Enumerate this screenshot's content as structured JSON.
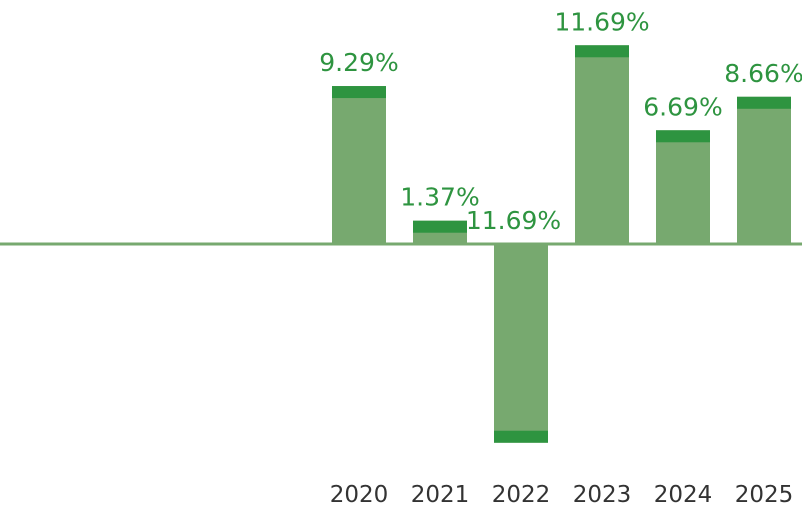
{
  "chart_data": {
    "type": "bar",
    "title": "",
    "xlabel": "",
    "ylabel": "",
    "categories": [
      "2020",
      "2021",
      "2022",
      "2023",
      "2024",
      "2025"
    ],
    "values": [
      9.29,
      1.37,
      -11.69,
      11.69,
      6.69,
      8.66
    ],
    "value_labels": [
      "9.29%",
      "1.37%",
      "-11.69%",
      "11.69%",
      "6.69%",
      "8.66%"
    ],
    "ylim": [
      -12.5,
      14.5
    ],
    "grid": false,
    "legend": "none",
    "colors": {
      "bar_body": "#77a96f",
      "bar_cap": "#2e9440",
      "value_text": "#2e9440",
      "axis": "#77a96f",
      "year_text": "#333333"
    }
  }
}
